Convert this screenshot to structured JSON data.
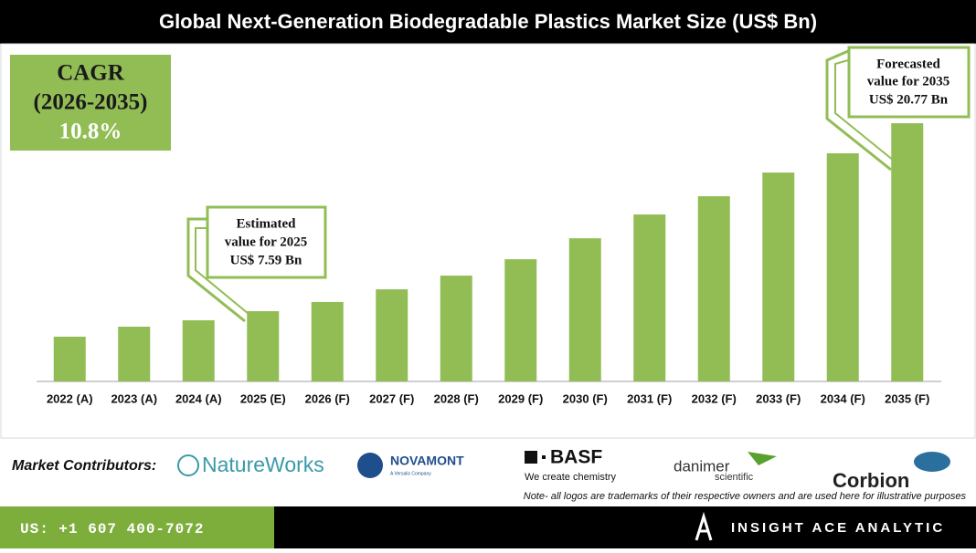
{
  "chart_data": {
    "type": "bar",
    "title": "Global Next-Generation Biodegradable Plastics Market Size (US$ Bn)",
    "categories": [
      "2022 (A)",
      "2023 (A)",
      "2024 (A)",
      "2025 (E)",
      "2026 (F)",
      "2027 (F)",
      "2028 (F)",
      "2029 (F)",
      "2030 (F)",
      "2031 (F)",
      "2032 (F)",
      "2033 (F)",
      "2034 (F)",
      "2035 (F)"
    ],
    "values": [
      5.8,
      6.5,
      6.95,
      7.59,
      8.23,
      9.12,
      10.08,
      11.23,
      12.7,
      14.37,
      15.65,
      17.31,
      18.66,
      20.77
    ],
    "color": "#92bd55",
    "ylim": [
      2.66,
      22.5
    ],
    "grid": false
  },
  "cagr": {
    "label": "CAGR",
    "period": "(2026-2035)",
    "value": "10.8%"
  },
  "callouts": [
    {
      "lines": [
        "Estimated",
        "value for 2025",
        "US$ 7.59 Bn"
      ]
    },
    {
      "lines": [
        "Forecasted",
        "value for 2035",
        "US$ 20.77 Bn"
      ]
    }
  ],
  "contributors": {
    "label": "Market Contributors:",
    "logos": [
      "NatureWorks",
      "NOVAMONT",
      "A Versalis Company",
      "BASF",
      "We create chemistry",
      "danimer",
      "scientific",
      "Corbion"
    ],
    "note": "Note- all logos are trademarks of their respective owners and are used here for illustrative purposes"
  },
  "footer": {
    "phone": "US: +1 607 400-7072",
    "brand": "INSIGHT ACE ANALYTIC"
  }
}
